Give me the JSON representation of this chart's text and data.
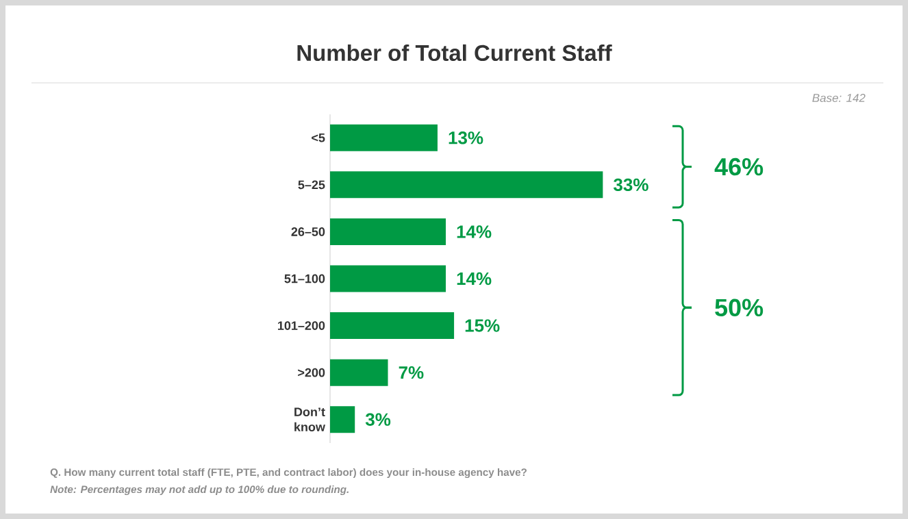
{
  "chart_data": {
    "type": "bar",
    "orientation": "horizontal",
    "title": "Number of Total Current Staff",
    "categories": [
      "<5",
      "5–25",
      "26–50",
      "51–100",
      "101–200",
      ">200",
      "Don’t know"
    ],
    "values": [
      13,
      33,
      14,
      14,
      15,
      7,
      3
    ],
    "value_labels": [
      "13%",
      "33%",
      "14%",
      "14%",
      "15%",
      "7%",
      "3%"
    ],
    "color": "#009a44",
    "annotations": [
      "Base: 142",
      "46%",
      "50%",
      "Q. How many current total staff (FTE, PTE, and contract labor) does your in-house agency have?",
      "Note: Percentages may not add up to 100% due to rounding."
    ]
  }
}
